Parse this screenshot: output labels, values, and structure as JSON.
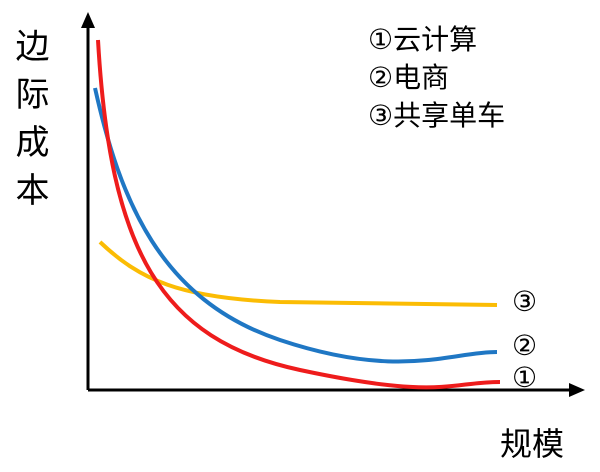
{
  "y_axis_label": "边际成本",
  "x_axis_label": "规模",
  "legend": [
    "①云计算",
    "②电商",
    "③共享单车"
  ],
  "curve_labels": [
    "①",
    "②",
    "③"
  ]
}
